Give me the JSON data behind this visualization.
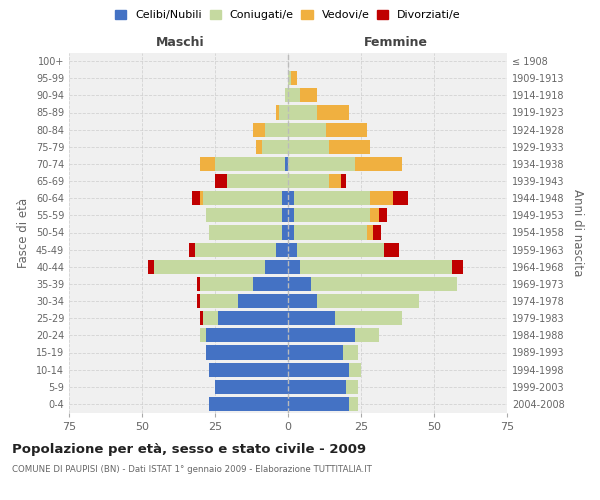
{
  "age_groups": [
    "0-4",
    "5-9",
    "10-14",
    "15-19",
    "20-24",
    "25-29",
    "30-34",
    "35-39",
    "40-44",
    "45-49",
    "50-54",
    "55-59",
    "60-64",
    "65-69",
    "70-74",
    "75-79",
    "80-84",
    "85-89",
    "90-94",
    "95-99",
    "100+"
  ],
  "birth_years": [
    "2004-2008",
    "1999-2003",
    "1994-1998",
    "1989-1993",
    "1984-1988",
    "1979-1983",
    "1974-1978",
    "1969-1973",
    "1964-1968",
    "1959-1963",
    "1954-1958",
    "1949-1953",
    "1944-1948",
    "1939-1943",
    "1934-1938",
    "1929-1933",
    "1924-1928",
    "1919-1923",
    "1914-1918",
    "1909-1913",
    "≤ 1908"
  ],
  "male": {
    "celibi": [
      27,
      25,
      27,
      28,
      28,
      24,
      17,
      12,
      8,
      4,
      2,
      2,
      2,
      0,
      1,
      0,
      0,
      0,
      0,
      0,
      0
    ],
    "coniugati": [
      0,
      0,
      0,
      0,
      2,
      5,
      13,
      18,
      38,
      28,
      25,
      26,
      27,
      21,
      24,
      9,
      8,
      3,
      1,
      0,
      0
    ],
    "vedovi": [
      0,
      0,
      0,
      0,
      0,
      0,
      0,
      0,
      0,
      0,
      0,
      0,
      1,
      0,
      5,
      2,
      4,
      1,
      0,
      0,
      0
    ],
    "divorziati": [
      0,
      0,
      0,
      0,
      0,
      1,
      1,
      1,
      2,
      2,
      0,
      0,
      3,
      4,
      0,
      0,
      0,
      0,
      0,
      0,
      0
    ]
  },
  "female": {
    "nubili": [
      21,
      20,
      21,
      19,
      23,
      16,
      10,
      8,
      4,
      3,
      2,
      2,
      2,
      0,
      0,
      0,
      0,
      0,
      0,
      0,
      0
    ],
    "coniugate": [
      3,
      4,
      4,
      5,
      8,
      23,
      35,
      50,
      52,
      30,
      25,
      26,
      26,
      14,
      23,
      14,
      13,
      10,
      4,
      1,
      0
    ],
    "vedove": [
      0,
      0,
      0,
      0,
      0,
      0,
      0,
      0,
      0,
      0,
      2,
      3,
      8,
      4,
      16,
      14,
      14,
      11,
      6,
      2,
      0
    ],
    "divorziate": [
      0,
      0,
      0,
      0,
      0,
      0,
      0,
      0,
      4,
      5,
      3,
      3,
      5,
      2,
      0,
      0,
      0,
      0,
      0,
      0,
      0
    ]
  },
  "colors": {
    "celibi": "#4472C4",
    "coniugati": "#c5d9a0",
    "vedovi": "#f0b040",
    "divorziati": "#c00000"
  },
  "title": "Popolazione per età, sesso e stato civile - 2009",
  "subtitle": "COMUNE DI PAUPISI (BN) - Dati ISTAT 1° gennaio 2009 - Elaborazione TUTTITALIA.IT",
  "ylabel_left": "Fasce di età",
  "ylabel_right": "Anni di nascita",
  "xlabel_left": "Maschi",
  "xlabel_right": "Femmine",
  "xlim": 75,
  "bg_color": "#f0f0f0",
  "grid_color": "#cccccc"
}
